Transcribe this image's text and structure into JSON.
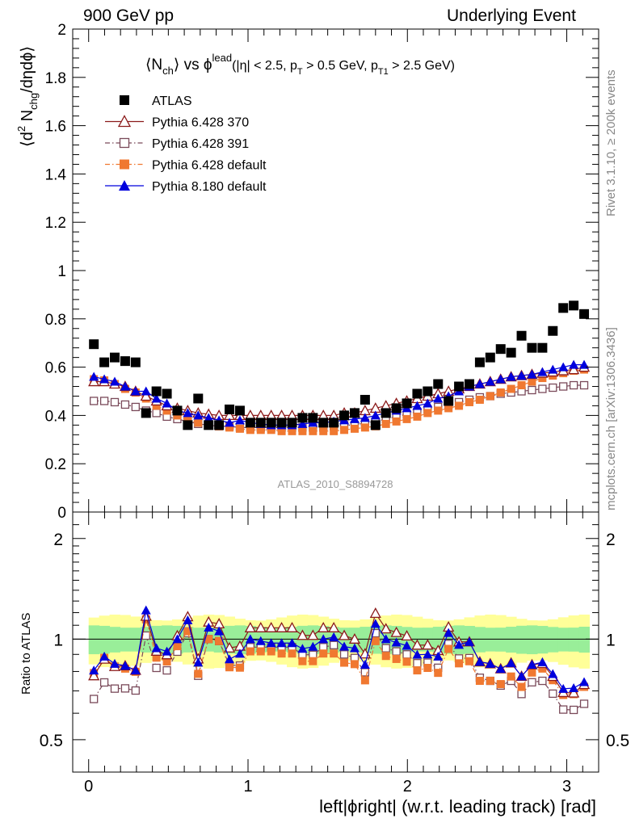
{
  "header": {
    "left": "900 GeV pp",
    "right": "Underlying Event"
  },
  "side_labels": {
    "rivet": "Rivet 3.1.10, ≥ 200k events",
    "mcplots": "mcplots.cern.ch [arXiv:1306.3436]"
  },
  "chart_data": {
    "type": "scatter",
    "title_parts": {
      "t1": "⟨N",
      "t2": "ch",
      "t3": "⟩ vs ϕ",
      "t4": "lead",
      "t5": "(|η| < 2.5, p",
      "t6": "T",
      "t7": " > 0.5 GeV, p",
      "t8": "T1",
      "t9": " > 2.5 GeV)"
    },
    "ylabel_parts": {
      "a1": "⟨d",
      "a2": "2",
      "a3": " N",
      "a4": "chg",
      "a5": "/dηdϕ⟩"
    },
    "xlabel": "left|ϕright| (w.r.t. leading track) [rad]",
    "ratio_ylabel": "Ratio to ATLAS",
    "analysis_label": "ATLAS_2010_S8894728",
    "xlim": [
      -0.1,
      3.2
    ],
    "ylim": [
      0,
      2
    ],
    "ratio_ylim": [
      0.4,
      2.4
    ],
    "x_ticks": [
      "0",
      "1",
      "2",
      "3"
    ],
    "y_ticks": [
      "0",
      "0.2",
      "0.4",
      "0.6",
      "0.8",
      "1",
      "1.2",
      "1.4",
      "1.6",
      "1.8",
      "2"
    ],
    "ratio_ticks": [
      "0.5",
      "1",
      "2"
    ],
    "x": [
      0.0327,
      0.0982,
      0.1636,
      0.2291,
      0.2945,
      0.36,
      0.4254,
      0.4909,
      0.5563,
      0.6218,
      0.6872,
      0.7527,
      0.8181,
      0.8836,
      0.949,
      1.0145,
      1.0799,
      1.1454,
      1.2108,
      1.2763,
      1.3417,
      1.4072,
      1.4726,
      1.5381,
      1.6035,
      1.669,
      1.7344,
      1.7999,
      1.8653,
      1.9308,
      1.9962,
      2.0617,
      2.1271,
      2.1926,
      2.258,
      2.3235,
      2.3889,
      2.4544,
      2.5198,
      2.5853,
      2.6507,
      2.7162,
      2.7816,
      2.8471,
      2.9125,
      2.978,
      3.0434,
      3.1089
    ],
    "uncertainty_bands": {
      "stat_syst_frac": 0.16,
      "stat_frac": 0.09
    },
    "series": [
      {
        "name": "ATLAS",
        "color": "#000000",
        "marker": "square-filled",
        "values": [
          0.695,
          0.62,
          0.64,
          0.625,
          0.62,
          0.41,
          0.5,
          0.49,
          0.42,
          0.36,
          0.47,
          0.36,
          0.36,
          0.425,
          0.42,
          0.37,
          0.37,
          0.37,
          0.37,
          0.37,
          0.39,
          0.39,
          0.37,
          0.37,
          0.4,
          0.41,
          0.465,
          0.36,
          0.41,
          0.43,
          0.45,
          0.49,
          0.5,
          0.53,
          0.46,
          0.52,
          0.53,
          0.62,
          0.64,
          0.675,
          0.66,
          0.73,
          0.68,
          0.68,
          0.75,
          0.845,
          0.855,
          0.82
        ]
      },
      {
        "name": "Pythia 6.428 370",
        "color": "#8b1a1a",
        "marker": "triangle-open",
        "line": "solid",
        "values": [
          0.54,
          0.54,
          0.53,
          0.52,
          0.5,
          0.48,
          0.46,
          0.44,
          0.43,
          0.42,
          0.41,
          0.405,
          0.4,
          0.4,
          0.4,
          0.4,
          0.4,
          0.4,
          0.4,
          0.4,
          0.4,
          0.4,
          0.4,
          0.4,
          0.41,
          0.41,
          0.42,
          0.43,
          0.44,
          0.45,
          0.46,
          0.47,
          0.48,
          0.49,
          0.5,
          0.51,
          0.52,
          0.53,
          0.54,
          0.55,
          0.56,
          0.565,
          0.57,
          0.575,
          0.58,
          0.585,
          0.59,
          0.6
        ]
      },
      {
        "name": "Pythia 6.428 391",
        "color": "#7a4a5a",
        "marker": "square-open",
        "line": "dash-dot",
        "values": [
          0.46,
          0.46,
          0.455,
          0.445,
          0.435,
          0.42,
          0.41,
          0.395,
          0.385,
          0.375,
          0.365,
          0.36,
          0.355,
          0.355,
          0.35,
          0.35,
          0.35,
          0.35,
          0.35,
          0.35,
          0.35,
          0.35,
          0.35,
          0.355,
          0.36,
          0.36,
          0.37,
          0.375,
          0.385,
          0.395,
          0.405,
          0.415,
          0.425,
          0.435,
          0.445,
          0.455,
          0.465,
          0.475,
          0.48,
          0.49,
          0.495,
          0.5,
          0.505,
          0.51,
          0.515,
          0.52,
          0.525,
          0.525
        ]
      },
      {
        "name": "Pythia 6.428 default",
        "color": "#f07830",
        "marker": "square-filled",
        "line": "dash-dot",
        "values": [
          0.55,
          0.545,
          0.53,
          0.51,
          0.495,
          0.47,
          0.44,
          0.42,
          0.4,
          0.38,
          0.37,
          0.36,
          0.355,
          0.35,
          0.345,
          0.34,
          0.34,
          0.34,
          0.335,
          0.335,
          0.335,
          0.335,
          0.335,
          0.335,
          0.34,
          0.345,
          0.35,
          0.355,
          0.365,
          0.375,
          0.385,
          0.395,
          0.41,
          0.42,
          0.43,
          0.44,
          0.455,
          0.465,
          0.48,
          0.495,
          0.51,
          0.525,
          0.54,
          0.555,
          0.565,
          0.575,
          0.585,
          0.59
        ]
      },
      {
        "name": "Pythia 8.180 default",
        "color": "#0000dd",
        "marker": "triangle-filled",
        "line": "solid",
        "values": [
          0.56,
          0.55,
          0.54,
          0.52,
          0.5,
          0.5,
          0.47,
          0.45,
          0.42,
          0.41,
          0.4,
          0.39,
          0.38,
          0.37,
          0.38,
          0.37,
          0.365,
          0.36,
          0.36,
          0.36,
          0.365,
          0.37,
          0.37,
          0.375,
          0.38,
          0.385,
          0.39,
          0.4,
          0.41,
          0.42,
          0.43,
          0.44,
          0.45,
          0.47,
          0.48,
          0.5,
          0.52,
          0.53,
          0.54,
          0.55,
          0.56,
          0.565,
          0.57,
          0.58,
          0.59,
          0.6,
          0.61,
          0.61
        ]
      }
    ]
  }
}
